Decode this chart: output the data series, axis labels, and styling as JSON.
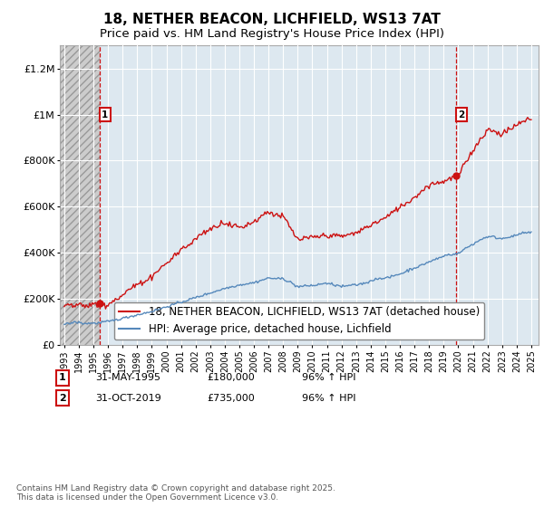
{
  "title": "18, NETHER BEACON, LICHFIELD, WS13 7AT",
  "subtitle": "Price paid vs. HM Land Registry's House Price Index (HPI)",
  "ylim": [
    0,
    1300000
  ],
  "yticks": [
    0,
    200000,
    400000,
    600000,
    800000,
    1000000,
    1200000
  ],
  "ytick_labels": [
    "£0",
    "£200K",
    "£400K",
    "£600K",
    "£800K",
    "£1M",
    "£1.2M"
  ],
  "xlim_start": 1992.7,
  "xlim_end": 2025.5,
  "xticks": [
    1993,
    1994,
    1995,
    1996,
    1997,
    1998,
    1999,
    2000,
    2001,
    2002,
    2003,
    2004,
    2005,
    2006,
    2007,
    2008,
    2009,
    2010,
    2011,
    2012,
    2013,
    2014,
    2015,
    2016,
    2017,
    2018,
    2019,
    2020,
    2021,
    2022,
    2023,
    2024,
    2025
  ],
  "hpi_color": "#5588bb",
  "price_color": "#cc1111",
  "vline_color": "#cc1111",
  "background_color": "#ffffff",
  "plot_bg_color": "#dde8f0",
  "grid_color": "#ffffff",
  "hatch_bg_color": "#cccccc",
  "purchase1_x": 1995.42,
  "purchase1_y": 180000,
  "purchase2_x": 2019.83,
  "purchase2_y": 735000,
  "legend_line1": "18, NETHER BEACON, LICHFIELD, WS13 7AT (detached house)",
  "legend_line2": "HPI: Average price, detached house, Lichfield",
  "annotation1_label": "1",
  "annotation2_label": "2",
  "footer": "Contains HM Land Registry data © Crown copyright and database right 2025.\nThis data is licensed under the Open Government Licence v3.0.",
  "title_fontsize": 11,
  "subtitle_fontsize": 9.5,
  "tick_fontsize": 8,
  "legend_fontsize": 8.5,
  "footer_fontsize": 6.5,
  "hpi_key_years": [
    1993,
    1994,
    1995,
    1996,
    1997,
    1998,
    1999,
    2000,
    2001,
    2002,
    2003,
    2004,
    2005,
    2006,
    2007,
    2008,
    2009,
    2010,
    2011,
    2012,
    2013,
    2014,
    2015,
    2016,
    2017,
    2018,
    2019,
    2020,
    2021,
    2022,
    2023,
    2024,
    2025
  ],
  "hpi_key_vals": [
    88000,
    93000,
    100000,
    110000,
    125000,
    140000,
    155000,
    175000,
    195000,
    215000,
    235000,
    255000,
    270000,
    280000,
    300000,
    295000,
    262000,
    268000,
    265000,
    255000,
    262000,
    278000,
    295000,
    315000,
    340000,
    365000,
    385000,
    390000,
    430000,
    470000,
    460000,
    470000,
    480000
  ],
  "price_key_years": [
    1993,
    1994,
    1995,
    1996,
    1997,
    1998,
    1999,
    2000,
    2001,
    2002,
    2003,
    2004,
    2005,
    2006,
    2007,
    2008,
    2009,
    2010,
    2011,
    2012,
    2013,
    2014,
    2015,
    2016,
    2017,
    2018,
    2019,
    2020,
    2021,
    2022,
    2023,
    2024,
    2025
  ],
  "price_key_vals": [
    175000,
    178000,
    180000,
    200000,
    235000,
    280000,
    320000,
    375000,
    415000,
    460000,
    500000,
    520000,
    530000,
    560000,
    600000,
    580000,
    480000,
    490000,
    500000,
    495000,
    510000,
    545000,
    575000,
    620000,
    665000,
    720000,
    735000,
    760000,
    870000,
    960000,
    940000,
    980000,
    1010000
  ]
}
